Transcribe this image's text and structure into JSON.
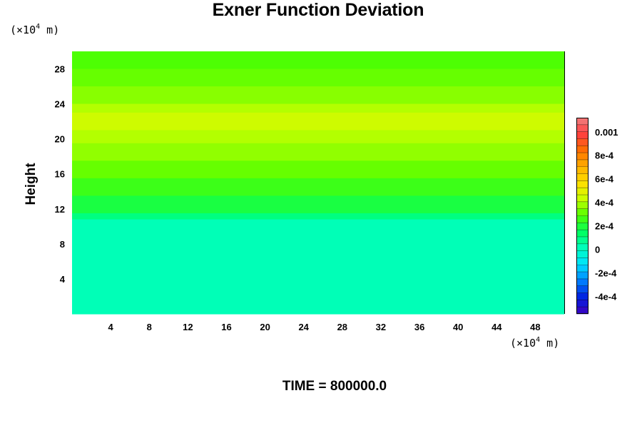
{
  "chart_data": {
    "type": "heatmap",
    "title": "Exner Function Deviation",
    "ylabel": "Height",
    "x_unit_prefix": "(×10",
    "x_unit_exp": "4",
    "x_unit_suffix": " m)",
    "y_unit_prefix": "(×10",
    "y_unit_exp": "4",
    "y_unit_suffix": " m)",
    "x_ticks": [
      "4",
      "8",
      "12",
      "16",
      "20",
      "24",
      "28",
      "32",
      "36",
      "40",
      "44",
      "48"
    ],
    "y_ticks": [
      "4",
      "8",
      "12",
      "16",
      "20",
      "24",
      "28"
    ],
    "xlim": [
      0,
      51
    ],
    "ylim": [
      0,
      30
    ],
    "colorbar": {
      "tick_labels": [
        "0.001",
        "8e-4",
        "6e-4",
        "4e-4",
        "2e-4",
        "0",
        "-2e-4",
        "-4e-4"
      ],
      "tick_values": [
        0.001,
        0.0008,
        0.0006,
        0.0004,
        0.0002,
        0,
        -0.0002,
        -0.0004
      ],
      "range": [
        -0.00055,
        0.00112
      ],
      "levels": 28,
      "colors_high_to_low": [
        "#f08080",
        "#ff4040",
        "#ff7000",
        "#ffb000",
        "#ffe000",
        "#c8ff00",
        "#50ff00",
        "#00ff60",
        "#00ffc0",
        "#00e0ff",
        "#0080ff",
        "#0020e0",
        "#4000c0"
      ]
    },
    "field_layers_top_to_bottom": [
      {
        "y_range": [
          28,
          30
        ],
        "value": 0.00028
      },
      {
        "y_range": [
          26,
          28
        ],
        "value": 0.00031
      },
      {
        "y_range": [
          24,
          26
        ],
        "value": 0.00035
      },
      {
        "y_range": [
          23,
          24
        ],
        "value": 0.0004
      },
      {
        "y_range": [
          21,
          23
        ],
        "value": 0.00044
      },
      {
        "y_range": [
          19.5,
          21
        ],
        "value": 0.0004
      },
      {
        "y_range": [
          17.5,
          19.5
        ],
        "value": 0.00036
      },
      {
        "y_range": [
          15.5,
          17.5
        ],
        "value": 0.00031
      },
      {
        "y_range": [
          13.5,
          15.5
        ],
        "value": 0.00025
      },
      {
        "y_range": [
          11.5,
          13.5
        ],
        "value": 0.00019
      },
      {
        "y_range": [
          10.8,
          11.5
        ],
        "value": 0.0001
      },
      {
        "y_range": [
          0,
          10.8
        ],
        "value": 2e-05
      }
    ]
  },
  "footer": {
    "time_label": "TIME = 800000.0"
  }
}
